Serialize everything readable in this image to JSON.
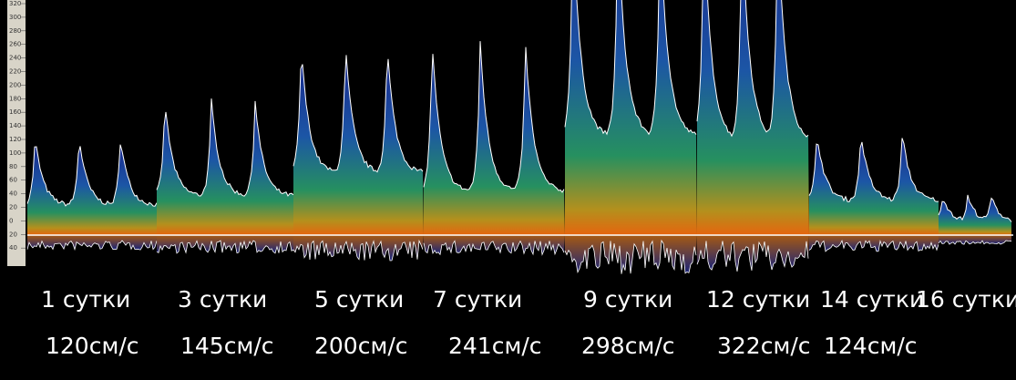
{
  "scale": {
    "ticks": [
      "320",
      "300",
      "280",
      "260",
      "240",
      "220",
      "200",
      "180",
      "160",
      "140",
      "120",
      "100",
      "80",
      "60",
      "40",
      "20",
      "0",
      "20",
      "40"
    ]
  },
  "segments": [
    {
      "day": "1 сутки",
      "speed": "120см/с"
    },
    {
      "day": "3 сутки",
      "speed": "145см/с"
    },
    {
      "day": "5 сутки",
      "speed": "200см/с"
    },
    {
      "day": "7 сутки",
      "speed": "241см/с"
    },
    {
      "day": "9 сутки",
      "speed": "298см/с"
    },
    {
      "day": "12 сутки",
      "speed": "322см/с"
    },
    {
      "day": "14 сутки",
      "speed": "124см/с"
    },
    {
      "day": "16 сутки",
      "speed": ""
    }
  ]
}
